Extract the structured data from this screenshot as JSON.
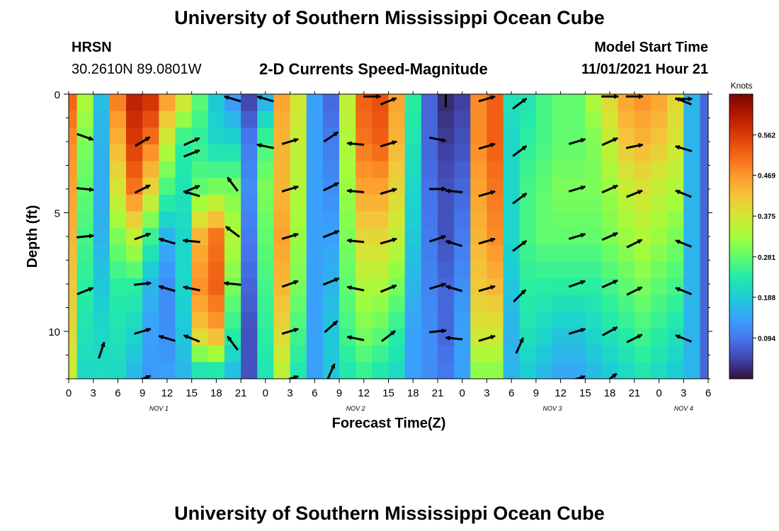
{
  "page_title": "University of Southern Mississippi Ocean Cube",
  "page_title_repeat": "University of Southern Mississippi Ocean Cube",
  "station": {
    "name": "HRSN",
    "coordinates": "30.2610N  89.0801W"
  },
  "model": {
    "label": "Model Start Time",
    "start": "11/01/2021 Hour 21"
  },
  "chart_data": {
    "type": "heatmap",
    "title": "2-D Currents Speed-Magnitude",
    "xlabel": "Forecast Time(Z)",
    "ylabel": "Depth (ft)",
    "xlim": [
      0,
      78
    ],
    "ylim": [
      12,
      0
    ],
    "x_tick_values": [
      0,
      3,
      6,
      9,
      12,
      15,
      18,
      21,
      24,
      27,
      30,
      33,
      36,
      39,
      42,
      45,
      48,
      51,
      54,
      57,
      60,
      63,
      66,
      69,
      72,
      75,
      78
    ],
    "x_tick_labels": [
      "0",
      "3",
      "6",
      "9",
      "12",
      "15",
      "18",
      "21",
      "0",
      "3",
      "6",
      "9",
      "12",
      "15",
      "18",
      "21",
      "0",
      "3",
      "6",
      "9",
      "12",
      "15",
      "18",
      "21",
      "0",
      "3",
      "6"
    ],
    "y_tick_values": [
      0,
      5,
      10
    ],
    "y_tick_labels": [
      "0",
      "5",
      "10"
    ],
    "date_labels": [
      {
        "label": "NOV 1",
        "hour": 11
      },
      {
        "label": "NOV 2",
        "hour": 35
      },
      {
        "label": "NOV 3",
        "hour": 59
      },
      {
        "label": "NOV 4",
        "hour": 75
      }
    ],
    "colorbar": {
      "label": "Knots",
      "min": 0.0,
      "max": 0.656,
      "ticks": [
        0.094,
        0.188,
        0.281,
        0.375,
        0.469,
        0.562
      ],
      "tick_labels": [
        "0.094",
        "0.188",
        "0.281",
        "0.375",
        "0.469",
        "0.562"
      ]
    },
    "depth_profile_ft": [
      0,
      2,
      4,
      6,
      8,
      10,
      12
    ],
    "speed_columns": [
      {
        "hour": 0,
        "speeds": [
          0.52,
          0.48,
          0.46,
          0.44,
          0.42,
          0.4,
          0.36
        ]
      },
      {
        "hour": 2,
        "speeds": [
          0.34,
          0.3,
          0.28,
          0.26,
          0.24,
          0.22,
          0.2
        ]
      },
      {
        "hour": 4,
        "speeds": [
          0.17,
          0.16,
          0.15,
          0.16,
          0.18,
          0.2,
          0.21
        ]
      },
      {
        "hour": 6,
        "speeds": [
          0.5,
          0.44,
          0.38,
          0.3,
          0.24,
          0.22,
          0.2
        ]
      },
      {
        "hour": 8,
        "speeds": [
          0.6,
          0.56,
          0.5,
          0.36,
          0.24,
          0.2,
          0.16
        ]
      },
      {
        "hour": 10,
        "speeds": [
          0.58,
          0.5,
          0.4,
          0.25,
          0.16,
          0.14,
          0.13
        ]
      },
      {
        "hour": 12,
        "speeds": [
          0.48,
          0.36,
          0.26,
          0.16,
          0.12,
          0.12,
          0.14
        ]
      },
      {
        "hour": 14,
        "speeds": [
          0.4,
          0.24,
          0.22,
          0.2,
          0.2,
          0.18,
          0.16
        ]
      },
      {
        "hour": 16,
        "speeds": [
          0.28,
          0.24,
          0.28,
          0.44,
          0.48,
          0.42,
          0.18
        ]
      },
      {
        "hour": 18,
        "speeds": [
          0.18,
          0.2,
          0.3,
          0.5,
          0.52,
          0.46,
          0.18
        ]
      },
      {
        "hour": 20,
        "speeds": [
          0.12,
          0.2,
          0.3,
          0.34,
          0.3,
          0.24,
          0.16
        ]
      },
      {
        "hour": 22,
        "speeds": [
          0.04,
          0.1,
          0.12,
          0.1,
          0.08,
          0.06,
          0.06
        ]
      },
      {
        "hour": 24,
        "speeds": [
          0.14,
          0.26,
          0.3,
          0.28,
          0.26,
          0.24,
          0.22
        ]
      },
      {
        "hour": 26,
        "speeds": [
          0.46,
          0.44,
          0.44,
          0.46,
          0.44,
          0.4,
          0.34
        ]
      },
      {
        "hour": 28,
        "speeds": [
          0.38,
          0.36,
          0.34,
          0.32,
          0.3,
          0.26,
          0.22
        ]
      },
      {
        "hour": 30,
        "speeds": [
          0.14,
          0.14,
          0.14,
          0.14,
          0.14,
          0.14,
          0.14
        ]
      },
      {
        "hour": 32,
        "speeds": [
          0.08,
          0.1,
          0.12,
          0.14,
          0.16,
          0.18,
          0.18
        ]
      },
      {
        "hour": 34,
        "speeds": [
          0.36,
          0.34,
          0.32,
          0.3,
          0.28,
          0.26,
          0.22
        ]
      },
      {
        "hour": 36,
        "speeds": [
          0.52,
          0.5,
          0.46,
          0.4,
          0.34,
          0.3,
          0.24
        ]
      },
      {
        "hour": 38,
        "speeds": [
          0.54,
          0.52,
          0.46,
          0.4,
          0.34,
          0.28,
          0.22
        ]
      },
      {
        "hour": 40,
        "speeds": [
          0.46,
          0.44,
          0.4,
          0.36,
          0.3,
          0.24,
          0.2
        ]
      },
      {
        "hour": 42,
        "speeds": [
          0.24,
          0.22,
          0.2,
          0.18,
          0.16,
          0.14,
          0.14
        ]
      },
      {
        "hour": 44,
        "speeds": [
          0.08,
          0.08,
          0.09,
          0.1,
          0.11,
          0.12,
          0.12
        ]
      },
      {
        "hour": 46,
        "speeds": [
          0.02,
          0.04,
          0.06,
          0.06,
          0.08,
          0.08,
          0.1
        ]
      },
      {
        "hour": 48,
        "speeds": [
          0.04,
          0.06,
          0.08,
          0.1,
          0.12,
          0.14,
          0.14
        ]
      },
      {
        "hour": 50,
        "speeds": [
          0.48,
          0.48,
          0.46,
          0.44,
          0.42,
          0.38,
          0.3
        ]
      },
      {
        "hour": 52,
        "speeds": [
          0.52,
          0.52,
          0.5,
          0.48,
          0.44,
          0.38,
          0.3
        ]
      },
      {
        "hour": 54,
        "speeds": [
          0.22,
          0.2,
          0.2,
          0.2,
          0.18,
          0.16,
          0.16
        ]
      },
      {
        "hour": 56,
        "speeds": [
          0.22,
          0.24,
          0.26,
          0.26,
          0.24,
          0.22,
          0.18
        ]
      },
      {
        "hour": 58,
        "speeds": [
          0.26,
          0.26,
          0.28,
          0.28,
          0.24,
          0.2,
          0.16
        ]
      },
      {
        "hour": 60,
        "speeds": [
          0.28,
          0.28,
          0.3,
          0.28,
          0.24,
          0.18,
          0.14
        ]
      },
      {
        "hour": 62,
        "speeds": [
          0.28,
          0.28,
          0.3,
          0.28,
          0.24,
          0.18,
          0.14
        ]
      },
      {
        "hour": 64,
        "speeds": [
          0.34,
          0.3,
          0.3,
          0.28,
          0.24,
          0.2,
          0.16
        ]
      },
      {
        "hour": 66,
        "speeds": [
          0.4,
          0.36,
          0.32,
          0.3,
          0.26,
          0.22,
          0.18
        ]
      },
      {
        "hour": 68,
        "speeds": [
          0.46,
          0.42,
          0.36,
          0.32,
          0.28,
          0.24,
          0.2
        ]
      },
      {
        "hour": 70,
        "speeds": [
          0.48,
          0.44,
          0.38,
          0.34,
          0.3,
          0.26,
          0.22
        ]
      },
      {
        "hour": 72,
        "speeds": [
          0.46,
          0.42,
          0.36,
          0.32,
          0.28,
          0.24,
          0.2
        ]
      },
      {
        "hour": 74,
        "speeds": [
          0.4,
          0.38,
          0.34,
          0.3,
          0.26,
          0.22,
          0.18
        ]
      },
      {
        "hour": 76,
        "speeds": [
          0.16,
          0.16,
          0.16,
          0.16,
          0.16,
          0.16,
          0.16
        ]
      },
      {
        "hour": 78,
        "speeds": [
          0.08,
          0.08,
          0.08,
          0.08,
          0.08,
          0.08,
          0.08
        ]
      }
    ],
    "current_vectors": [
      {
        "hour": 2,
        "depth": 1.8,
        "dx": 1,
        "dy": -0.35
      },
      {
        "hour": 2,
        "depth": 4,
        "dx": 1,
        "dy": -0.1
      },
      {
        "hour": 2,
        "depth": 6,
        "dx": 1,
        "dy": 0.1
      },
      {
        "hour": 2,
        "depth": 8.3,
        "dx": 1,
        "dy": 0.4
      },
      {
        "hour": 4,
        "depth": 10.8,
        "dx": 0.3,
        "dy": 0.9
      },
      {
        "hour": 9,
        "depth": 2,
        "dx": 1,
        "dy": 0.6
      },
      {
        "hour": 9,
        "depth": 4,
        "dx": 1,
        "dy": 0.5
      },
      {
        "hour": 9,
        "depth": 6,
        "dx": 1,
        "dy": 0.35
      },
      {
        "hour": 9,
        "depth": 8,
        "dx": 1,
        "dy": 0.1
      },
      {
        "hour": 9,
        "depth": 10,
        "dx": 1,
        "dy": 0.3
      },
      {
        "hour": 9,
        "depth": 12,
        "dx": 1,
        "dy": 0.35
      },
      {
        "hour": 12,
        "depth": 6.2,
        "dx": -1,
        "dy": 0.3
      },
      {
        "hour": 12,
        "depth": 8.2,
        "dx": -1,
        "dy": 0.3
      },
      {
        "hour": 12,
        "depth": 10.3,
        "dx": -1,
        "dy": 0.3
      },
      {
        "hour": 15,
        "depth": 2,
        "dx": 1,
        "dy": 0.45
      },
      {
        "hour": 15,
        "depth": 2.5,
        "dx": 1,
        "dy": 0.4
      },
      {
        "hour": 15,
        "depth": 4,
        "dx": 1,
        "dy": 0.4
      },
      {
        "hour": 15,
        "depth": 4.2,
        "dx": -1,
        "dy": 0.3
      },
      {
        "hour": 15,
        "depth": 6.2,
        "dx": -1,
        "dy": 0.1
      },
      {
        "hour": 15,
        "depth": 8.2,
        "dx": -1,
        "dy": 0.2
      },
      {
        "hour": 15,
        "depth": 10.3,
        "dx": -1,
        "dy": 0.4
      },
      {
        "hour": 20,
        "depth": 0.2,
        "dx": -1,
        "dy": 0.3
      },
      {
        "hour": 20,
        "depth": 3.8,
        "dx": -0.6,
        "dy": 0.8
      },
      {
        "hour": 20,
        "depth": 5.8,
        "dx": -0.8,
        "dy": 0.6
      },
      {
        "hour": 20,
        "depth": 8,
        "dx": -1,
        "dy": 0.1
      },
      {
        "hour": 20,
        "depth": 10.5,
        "dx": -0.6,
        "dy": 0.8
      },
      {
        "hour": 24,
        "depth": 0.2,
        "dx": -1,
        "dy": 0.3
      },
      {
        "hour": 24,
        "depth": 2.2,
        "dx": -1,
        "dy": 0.2
      },
      {
        "hour": 27,
        "depth": 2,
        "dx": 1,
        "dy": 0.3
      },
      {
        "hour": 27,
        "depth": 4,
        "dx": 1,
        "dy": 0.3
      },
      {
        "hour": 27,
        "depth": 6,
        "dx": 1,
        "dy": 0.3
      },
      {
        "hour": 27,
        "depth": 8,
        "dx": 1,
        "dy": 0.35
      },
      {
        "hour": 27,
        "depth": 10,
        "dx": 1,
        "dy": 0.3
      },
      {
        "hour": 27,
        "depth": 12,
        "dx": 1,
        "dy": 0.3
      },
      {
        "hour": 32,
        "depth": 1.8,
        "dx": 0.9,
        "dy": 0.6
      },
      {
        "hour": 32,
        "depth": 3.9,
        "dx": 1,
        "dy": 0.5
      },
      {
        "hour": 32,
        "depth": 5.9,
        "dx": 1,
        "dy": 0.4
      },
      {
        "hour": 32,
        "depth": 7.9,
        "dx": 1,
        "dy": 0.4
      },
      {
        "hour": 32,
        "depth": 9.8,
        "dx": 0.8,
        "dy": 0.7
      },
      {
        "hour": 32,
        "depth": 11.7,
        "dx": 0.4,
        "dy": 0.9
      },
      {
        "hour": 35,
        "depth": 2.1,
        "dx": -1,
        "dy": 0.1
      },
      {
        "hour": 35,
        "depth": 4.1,
        "dx": -1,
        "dy": 0.1
      },
      {
        "hour": 35,
        "depth": 6.2,
        "dx": -1,
        "dy": 0.1
      },
      {
        "hour": 35,
        "depth": 8.2,
        "dx": -1,
        "dy": 0.2
      },
      {
        "hour": 35,
        "depth": 10.3,
        "dx": -1,
        "dy": 0.2
      },
      {
        "hour": 37,
        "depth": 0.1,
        "dx": 1,
        "dy": 0
      },
      {
        "hour": 39,
        "depth": 0.3,
        "dx": 1,
        "dy": 0.4
      },
      {
        "hour": 39,
        "depth": 2.1,
        "dx": 1,
        "dy": 0.3
      },
      {
        "hour": 39,
        "depth": 4.1,
        "dx": 1,
        "dy": 0.3
      },
      {
        "hour": 39,
        "depth": 6.2,
        "dx": 1,
        "dy": 0.3
      },
      {
        "hour": 39,
        "depth": 8.2,
        "dx": 1,
        "dy": 0.4
      },
      {
        "hour": 39,
        "depth": 10.2,
        "dx": 0.8,
        "dy": 0.6
      },
      {
        "hour": 45,
        "depth": 1.9,
        "dx": 1,
        "dy": -0.2
      },
      {
        "hour": 45,
        "depth": 4,
        "dx": 1,
        "dy": 0
      },
      {
        "hour": 45,
        "depth": 6.1,
        "dx": 0.9,
        "dy": 0.3
      },
      {
        "hour": 45,
        "depth": 8.1,
        "dx": 1,
        "dy": 0.3
      },
      {
        "hour": 45,
        "depth": 10,
        "dx": 1,
        "dy": 0.1
      },
      {
        "hour": 46,
        "depth": 0.2,
        "dx": 0,
        "dy": 1
      },
      {
        "hour": 47,
        "depth": 4.1,
        "dx": -1,
        "dy": 0.1
      },
      {
        "hour": 47,
        "depth": 6.3,
        "dx": -1,
        "dy": 0.3
      },
      {
        "hour": 47,
        "depth": 8.2,
        "dx": -1,
        "dy": 0.3
      },
      {
        "hour": 47,
        "depth": 10.3,
        "dx": -1,
        "dy": 0.1
      },
      {
        "hour": 51,
        "depth": 0.2,
        "dx": 1,
        "dy": 0.3
      },
      {
        "hour": 51,
        "depth": 2.2,
        "dx": 1,
        "dy": 0.3
      },
      {
        "hour": 51,
        "depth": 4.2,
        "dx": 1,
        "dy": 0.3
      },
      {
        "hour": 51,
        "depth": 6.2,
        "dx": 1,
        "dy": 0.3
      },
      {
        "hour": 51,
        "depth": 8.2,
        "dx": 1,
        "dy": 0.3
      },
      {
        "hour": 51,
        "depth": 10.3,
        "dx": 1,
        "dy": 0.3
      },
      {
        "hour": 55,
        "depth": 0.4,
        "dx": 0.8,
        "dy": 0.6
      },
      {
        "hour": 55,
        "depth": 2.4,
        "dx": 0.8,
        "dy": 0.6
      },
      {
        "hour": 55,
        "depth": 4.4,
        "dx": 0.8,
        "dy": 0.6
      },
      {
        "hour": 55,
        "depth": 6.4,
        "dx": 0.8,
        "dy": 0.6
      },
      {
        "hour": 55,
        "depth": 8.5,
        "dx": 0.7,
        "dy": 0.7
      },
      {
        "hour": 55,
        "depth": 10.6,
        "dx": 0.4,
        "dy": 0.9
      },
      {
        "hour": 62,
        "depth": 2,
        "dx": 1,
        "dy": 0.3
      },
      {
        "hour": 62,
        "depth": 4,
        "dx": 1,
        "dy": 0.3
      },
      {
        "hour": 62,
        "depth": 6,
        "dx": 1,
        "dy": 0.3
      },
      {
        "hour": 62,
        "depth": 8,
        "dx": 1,
        "dy": 0.35
      },
      {
        "hour": 62,
        "depth": 10,
        "dx": 1,
        "dy": 0.3
      },
      {
        "hour": 62,
        "depth": 12,
        "dx": 1,
        "dy": 0.3
      },
      {
        "hour": 66,
        "depth": 0.1,
        "dx": 1,
        "dy": 0
      },
      {
        "hour": 66,
        "depth": 2,
        "dx": 1,
        "dy": 0.45
      },
      {
        "hour": 66,
        "depth": 4,
        "dx": 1,
        "dy": 0.45
      },
      {
        "hour": 66,
        "depth": 6,
        "dx": 1,
        "dy": 0.45
      },
      {
        "hour": 66,
        "depth": 8,
        "dx": 1,
        "dy": 0.45
      },
      {
        "hour": 66,
        "depth": 10,
        "dx": 0.9,
        "dy": 0.5
      },
      {
        "hour": 66,
        "depth": 12,
        "dx": 0.8,
        "dy": 0.6
      },
      {
        "hour": 69,
        "depth": 0.1,
        "dx": 1,
        "dy": 0
      },
      {
        "hour": 69,
        "depth": 2.2,
        "dx": 1,
        "dy": 0.2
      },
      {
        "hour": 69,
        "depth": 4.2,
        "dx": 1,
        "dy": 0.4
      },
      {
        "hour": 69,
        "depth": 6.3,
        "dx": 1,
        "dy": 0.5
      },
      {
        "hour": 69,
        "depth": 8.3,
        "dx": 1,
        "dy": 0.5
      },
      {
        "hour": 69,
        "depth": 10.3,
        "dx": 1,
        "dy": 0.5
      },
      {
        "hour": 75,
        "depth": 0.3,
        "dx": -1,
        "dy": 0.4
      },
      {
        "hour": 75,
        "depth": 2.3,
        "dx": -1,
        "dy": 0.3
      },
      {
        "hour": 75,
        "depth": 4.2,
        "dx": -1,
        "dy": 0.4
      },
      {
        "hour": 75,
        "depth": 6.3,
        "dx": -1,
        "dy": 0.4
      },
      {
        "hour": 75,
        "depth": 8.3,
        "dx": -1,
        "dy": 0.4
      },
      {
        "hour": 75,
        "depth": 10.3,
        "dx": -1,
        "dy": 0.4
      },
      {
        "hour": 75,
        "depth": 0.2,
        "dx": 1,
        "dy": 0
      }
    ]
  }
}
